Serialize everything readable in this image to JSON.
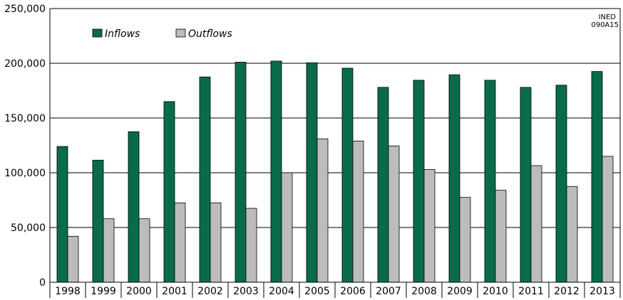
{
  "chart_data": {
    "type": "bar",
    "title": "",
    "xlabel": "",
    "ylabel": "",
    "categories": [
      "1998",
      "1999",
      "2000",
      "2001",
      "2002",
      "2003",
      "2004",
      "2005",
      "2006",
      "2007",
      "2008",
      "2009",
      "2010",
      "2011",
      "2012",
      "2013"
    ],
    "series": [
      {
        "name": "Inflows",
        "color": "#0a6b4a",
        "values": [
          124000,
          111500,
          137500,
          165000,
          187500,
          201000,
          202000,
          200500,
          195500,
          178000,
          184500,
          189500,
          184500,
          178000,
          180000,
          192500
        ]
      },
      {
        "name": "Outflows",
        "color": "#bcbcbc",
        "values": [
          42000,
          58000,
          58000,
          72500,
          72500,
          67500,
          100000,
          131000,
          129000,
          124500,
          103000,
          77500,
          84000,
          106500,
          87500,
          115000
        ]
      }
    ],
    "ylim": [
      0,
      250000
    ],
    "yticks": [
      0,
      50000,
      100000,
      150000,
      200000,
      250000
    ],
    "ytick_labels": [
      "0",
      "50,000",
      "100,000",
      "150,000",
      "200,000",
      "250,000"
    ],
    "grid": true,
    "legend_position": "top-left",
    "annotation": [
      "INED",
      "090A15"
    ]
  }
}
